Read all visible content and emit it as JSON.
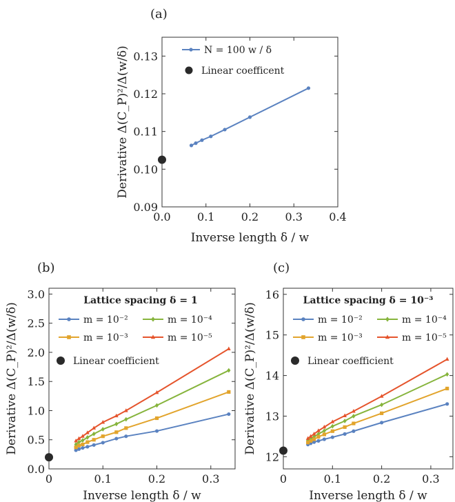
{
  "chart_data": [
    {
      "type": "line",
      "panel_label": "(a)",
      "xlabel": "Inverse length δ /  w",
      "ylabel": "Derivative  Δ(C_P)²/Δ(w/δ)",
      "xlim": [
        0,
        0.4
      ],
      "ylim": [
        0.09,
        0.135
      ],
      "x_ticks": [
        "0.0",
        "0.1",
        "0.2",
        "0.3",
        "0.4"
      ],
      "y_ticks": [
        "0.09",
        "0.10",
        "0.11",
        "0.12",
        "0.13"
      ],
      "legend_title": "",
      "legend_placement": "top-left",
      "series": [
        {
          "name": "N = 100 w / δ",
          "color": "#5a82c0",
          "x": [
            0.0667,
            0.0769,
            0.0909,
            0.1111,
            0.1429,
            0.2,
            0.3333
          ],
          "y": [
            0.1063,
            0.1069,
            0.1077,
            0.1087,
            0.1105,
            0.1138,
            0.1215
          ]
        }
      ],
      "linear_coefficient": {
        "name": "Linear coefficent",
        "x": 0,
        "y": 0.1025,
        "color": "#2a2a2a"
      }
    },
    {
      "type": "line",
      "panel_label": "(b)",
      "xlabel": "Inverse length δ / w",
      "ylabel": "Derivative  Δ(C_P)²/Δ(w/δ)",
      "xlim": [
        0,
        0.345
      ],
      "ylim": [
        0,
        3.1
      ],
      "x_ticks": [
        "0",
        "0.1",
        "0.2",
        "0.3"
      ],
      "y_ticks": [
        "0.0",
        "0.5",
        "1.0",
        "1.5",
        "2.0",
        "2.5",
        "3.0"
      ],
      "legend_title": "Lattice spacing  δ = 1",
      "legend_placement": "top",
      "series": [
        {
          "name": "m = 10⁻²",
          "color": "#5a82c0",
          "marker": "circle",
          "x": [
            0.05,
            0.0556,
            0.0625,
            0.0714,
            0.0833,
            0.1,
            0.125,
            0.1429,
            0.2,
            0.3333
          ],
          "y": [
            0.32,
            0.34,
            0.36,
            0.38,
            0.41,
            0.45,
            0.52,
            0.56,
            0.65,
            0.94
          ]
        },
        {
          "name": "m = 10⁻⁴",
          "color": "#86b43c",
          "marker": "diamond",
          "x": [
            0.05,
            0.0556,
            0.0625,
            0.0714,
            0.0833,
            0.1,
            0.125,
            0.1429,
            0.2,
            0.3333
          ],
          "y": [
            0.42,
            0.46,
            0.49,
            0.54,
            0.6,
            0.68,
            0.77,
            0.85,
            1.09,
            1.69
          ]
        },
        {
          "name": "m = 10⁻³",
          "color": "#e2a42c",
          "marker": "square",
          "x": [
            0.05,
            0.0556,
            0.0625,
            0.0714,
            0.0833,
            0.1,
            0.125,
            0.1429,
            0.2,
            0.3333
          ],
          "y": [
            0.37,
            0.4,
            0.42,
            0.46,
            0.5,
            0.56,
            0.63,
            0.7,
            0.87,
            1.32
          ]
        },
        {
          "name": "m = 10⁻⁵",
          "color": "#e5542c",
          "marker": "triangle",
          "x": [
            0.05,
            0.0556,
            0.0625,
            0.0714,
            0.0833,
            0.1,
            0.125,
            0.1429,
            0.2,
            0.3333
          ],
          "y": [
            0.48,
            0.52,
            0.56,
            0.62,
            0.7,
            0.8,
            0.91,
            1.0,
            1.31,
            2.06
          ]
        }
      ],
      "linear_coefficient": {
        "name": "Linear coefficient",
        "x": 0,
        "y": 0.2,
        "color": "#2a2a2a"
      }
    },
    {
      "type": "line",
      "panel_label": "(c)",
      "xlabel": "Inverse length δ / w",
      "ylabel": "Derivative  Δ(C_P)²/Δ(w/δ)",
      "xlim": [
        0,
        0.345
      ],
      "ylim": [
        11.7,
        16.15
      ],
      "x_ticks": [
        "0",
        "0.1",
        "0.2",
        "0.3"
      ],
      "y_ticks": [
        "12",
        "13",
        "14",
        "15",
        "16"
      ],
      "legend_title": "Lattice spacing  δ = 10⁻³",
      "legend_placement": "top",
      "series": [
        {
          "name": "m = 10⁻²",
          "color": "#5a82c0",
          "marker": "circle",
          "x": [
            0.05,
            0.0556,
            0.0625,
            0.0714,
            0.0833,
            0.1,
            0.125,
            0.1429,
            0.2,
            0.3333
          ],
          "y": [
            12.3,
            12.33,
            12.36,
            12.39,
            12.43,
            12.48,
            12.56,
            12.63,
            12.84,
            13.3
          ]
        },
        {
          "name": "m = 10⁻⁴",
          "color": "#86b43c",
          "marker": "diamond",
          "x": [
            0.05,
            0.0556,
            0.0625,
            0.0714,
            0.0833,
            0.1,
            0.125,
            0.1429,
            0.2,
            0.3333
          ],
          "y": [
            12.4,
            12.44,
            12.49,
            12.56,
            12.64,
            12.75,
            12.88,
            13.0,
            13.28,
            14.03
          ]
        },
        {
          "name": "m = 10⁻³",
          "color": "#e2a42c",
          "marker": "square",
          "x": [
            0.05,
            0.0556,
            0.0625,
            0.0714,
            0.0833,
            0.1,
            0.125,
            0.1429,
            0.2,
            0.3333
          ],
          "y": [
            12.35,
            12.39,
            12.43,
            12.49,
            12.55,
            12.63,
            12.73,
            12.82,
            13.07,
            13.68
          ]
        },
        {
          "name": "m = 10⁻⁵",
          "color": "#e5542c",
          "marker": "triangle",
          "x": [
            0.05,
            0.0556,
            0.0625,
            0.0714,
            0.0833,
            0.1,
            0.125,
            0.1429,
            0.2,
            0.3333
          ],
          "y": [
            12.45,
            12.5,
            12.56,
            12.64,
            12.73,
            12.86,
            13.01,
            13.12,
            13.49,
            14.4
          ]
        }
      ],
      "linear_coefficient": {
        "name": "Linear coefficient",
        "x": 0,
        "y": 12.15,
        "color": "#2a2a2a"
      }
    }
  ]
}
